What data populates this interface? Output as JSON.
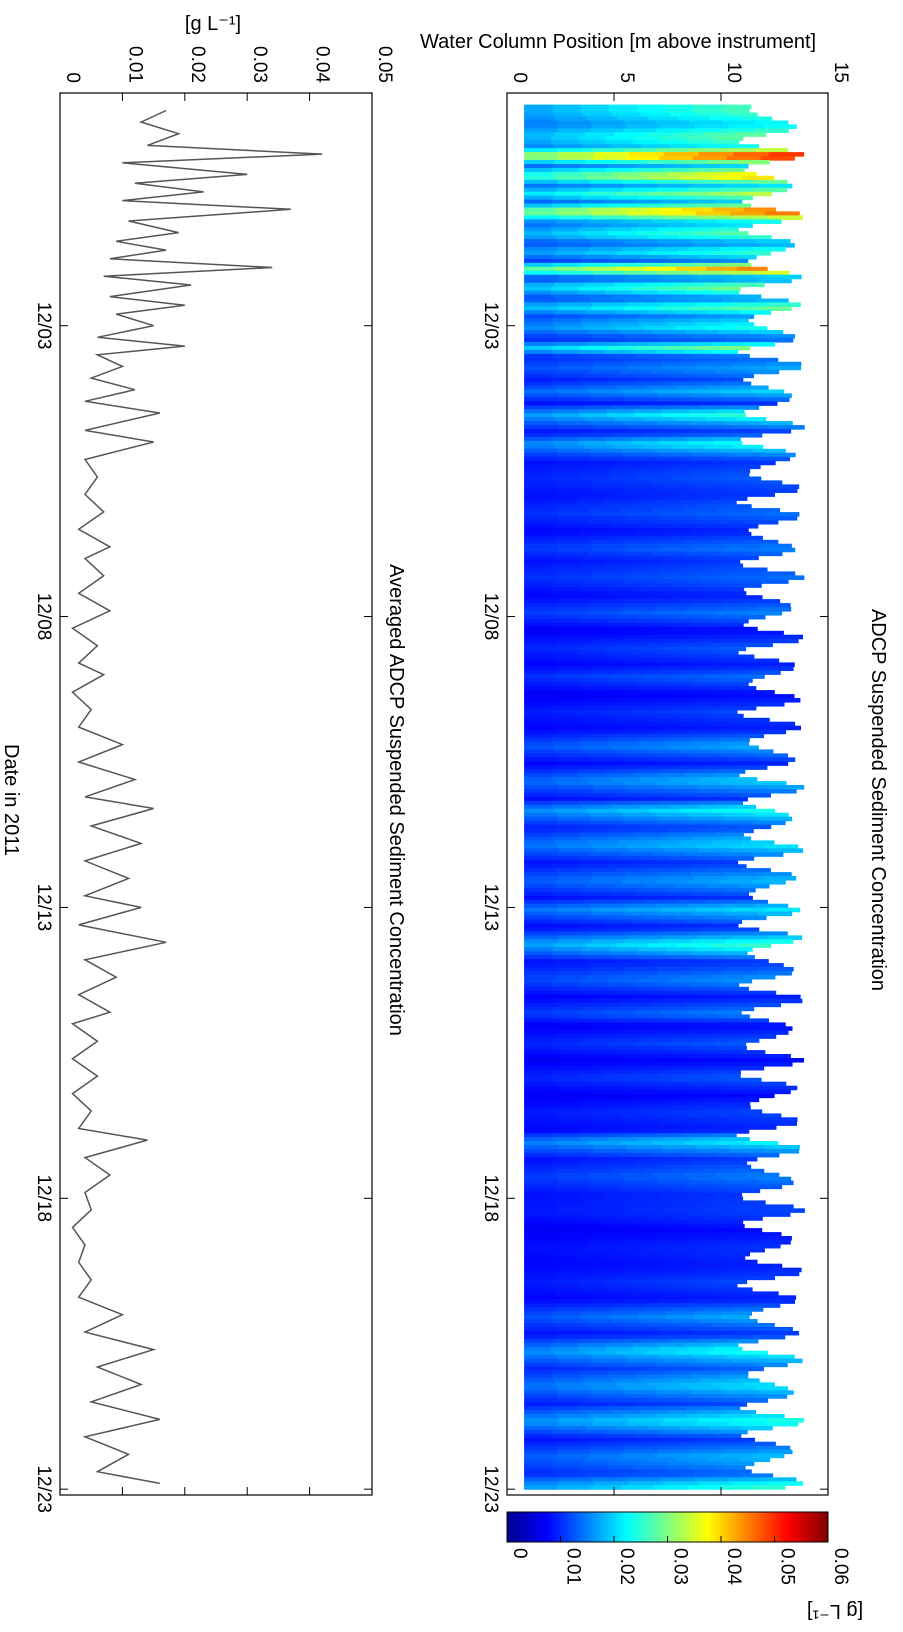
{
  "chart_data": [
    {
      "type": "heatmap",
      "title": "ADCP Suspended Sediment Concentration",
      "ylabel": "Water Column Position [m above instrument]",
      "y_ticks": [
        "0",
        "5",
        "10",
        "15"
      ],
      "ylim": [
        0,
        15
      ],
      "x_ticks": [
        "12/03",
        "12/08",
        "12/13",
        "12/18",
        "12/23"
      ],
      "xlim": [
        "11/29 12:00",
        "12/23 12:00"
      ],
      "colorbar": {
        "label": "[g L⁻¹]",
        "ticks": [
          "0",
          "0.01",
          "0.02",
          "0.03",
          "0.04",
          "0.05",
          "0.06"
        ],
        "range": [
          0,
          0.06
        ],
        "colormap": "jet"
      },
      "notes": "Concentration mostly 0.005-0.015 g/L; high-concentration bands (up to ~0.06 g/L) near 11/30-12/02 and 12/03"
    },
    {
      "type": "line",
      "title": "Averaged ADCP Suspended Sediment Concentration",
      "xlabel": "Date in 2011",
      "ylabel": "[g L⁻¹]",
      "y_ticks": [
        "0",
        "0.01",
        "0.02",
        "0.03",
        "0.04",
        "0.05"
      ],
      "ylim": [
        0,
        0.05
      ],
      "x_ticks": [
        "12/03",
        "12/08",
        "12/13",
        "12/18",
        "12/23"
      ],
      "x_unit": "days since 12/01/2011 (12/03 = 2)",
      "x": [
        -1.7,
        -1.5,
        -1.3,
        -1.1,
        -0.95,
        -0.8,
        -0.6,
        -0.45,
        -0.3,
        -0.15,
        0.0,
        0.2,
        0.4,
        0.55,
        0.7,
        0.85,
        1.0,
        1.15,
        1.3,
        1.5,
        1.65,
        1.8,
        2.0,
        2.2,
        2.35,
        2.5,
        2.7,
        2.9,
        3.1,
        3.3,
        3.5,
        3.8,
        4.0,
        4.3,
        4.6,
        4.9,
        5.2,
        5.5,
        5.8,
        6.0,
        6.3,
        6.6,
        6.9,
        7.2,
        7.5,
        7.8,
        8.0,
        8.3,
        8.6,
        8.9,
        9.2,
        9.5,
        9.8,
        10.1,
        10.3,
        10.6,
        10.9,
        11.2,
        11.5,
        11.8,
        12.0,
        12.3,
        12.6,
        12.9,
        13.2,
        13.5,
        13.8,
        14.0,
        14.3,
        14.6,
        14.9,
        15.2,
        15.5,
        15.8,
        16.0,
        16.3,
        16.6,
        16.9,
        17.2,
        17.5,
        17.8,
        18.1,
        18.4,
        18.7,
        19.0,
        19.3,
        19.6,
        19.9,
        20.2,
        20.5,
        20.8,
        21.1,
        21.4,
        21.7,
        21.9
      ],
      "y": [
        0.017,
        0.013,
        0.019,
        0.014,
        0.042,
        0.01,
        0.03,
        0.012,
        0.023,
        0.01,
        0.037,
        0.011,
        0.019,
        0.009,
        0.017,
        0.008,
        0.034,
        0.007,
        0.021,
        0.008,
        0.02,
        0.009,
        0.015,
        0.006,
        0.02,
        0.006,
        0.01,
        0.005,
        0.012,
        0.004,
        0.016,
        0.004,
        0.015,
        0.004,
        0.006,
        0.004,
        0.007,
        0.003,
        0.008,
        0.004,
        0.007,
        0.003,
        0.008,
        0.002,
        0.006,
        0.003,
        0.007,
        0.002,
        0.005,
        0.003,
        0.01,
        0.003,
        0.012,
        0.004,
        0.015,
        0.005,
        0.013,
        0.004,
        0.011,
        0.004,
        0.013,
        0.003,
        0.017,
        0.004,
        0.009,
        0.003,
        0.008,
        0.002,
        0.006,
        0.002,
        0.006,
        0.002,
        0.005,
        0.003,
        0.014,
        0.004,
        0.008,
        0.004,
        0.005,
        0.002,
        0.004,
        0.003,
        0.005,
        0.003,
        0.01,
        0.004,
        0.015,
        0.006,
        0.013,
        0.005,
        0.016,
        0.004,
        0.011,
        0.006,
        0.016
      ]
    }
  ]
}
